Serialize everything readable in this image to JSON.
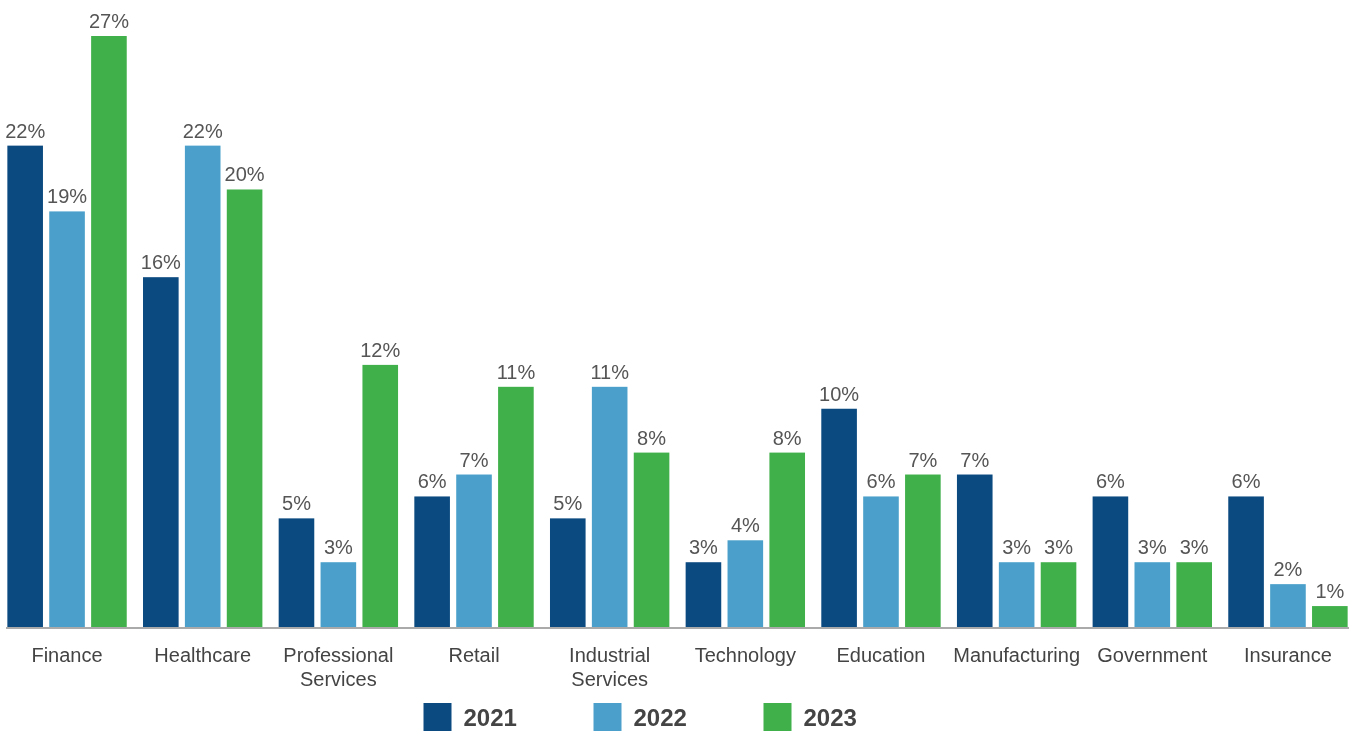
{
  "chart_data": {
    "type": "bar",
    "categories": [
      "Finance",
      "Healthcare",
      "Professional Services",
      "Retail",
      "Industrial Services",
      "Technology",
      "Education",
      "Manufacturing",
      "Government",
      "Insurance"
    ],
    "series": [
      {
        "name": "2021",
        "color": "#0b4a80",
        "values": [
          22,
          16,
          5,
          6,
          5,
          3,
          10,
          7,
          6,
          6
        ],
        "value_labels": [
          "22%",
          "16%",
          "5%",
          "6%",
          "5%",
          "3%",
          "10%",
          "7%",
          "6%",
          "6%"
        ]
      },
      {
        "name": "2022",
        "color": "#4aa0cb",
        "values": [
          19,
          22,
          3,
          7,
          11,
          4,
          6,
          3,
          3,
          2
        ],
        "value_labels": [
          "19%",
          "22%",
          "3%",
          "7%",
          "11%",
          "4%",
          "6%",
          "3%",
          "3%",
          "2%"
        ]
      },
      {
        "name": "2023",
        "color": "#40b04a",
        "values": [
          27,
          20,
          12,
          11,
          8,
          8,
          7,
          3,
          3,
          1
        ],
        "value_labels": [
          "27%",
          "20%",
          "12%",
          "11%",
          "8%",
          "8%",
          "7%",
          "3%",
          "3%",
          "1%"
        ]
      }
    ],
    "legend": "bottom"
  }
}
